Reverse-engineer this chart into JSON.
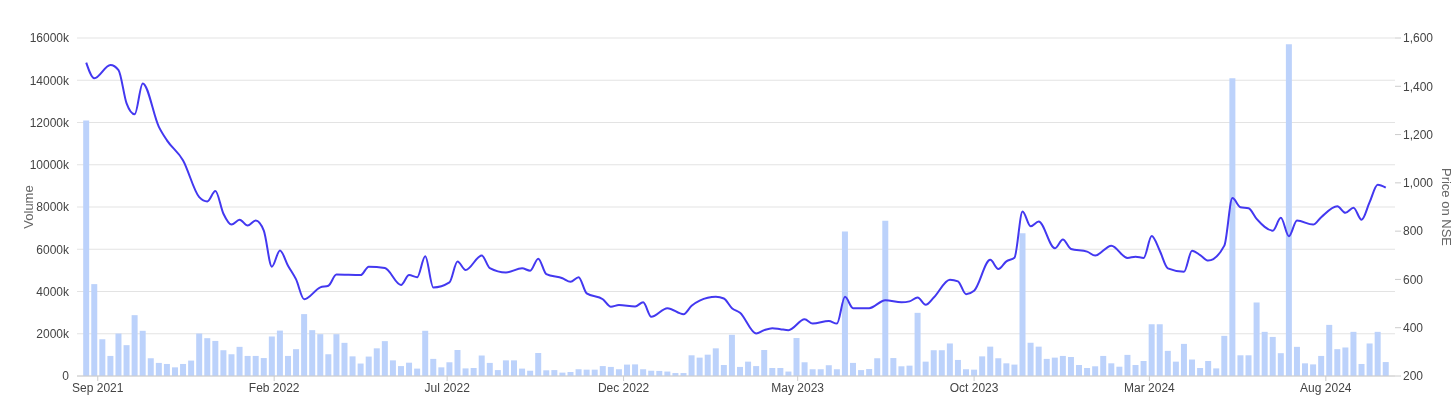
{
  "chart_data": {
    "type": "bar",
    "ylabel": "Volume",
    "y2label": "Price on NSE",
    "grid": "y",
    "xlim": [
      "2021-08-14",
      "2024-09-30"
    ],
    "xticks": [
      {
        "value": "2021-09-01",
        "label": "Sep 2021"
      },
      {
        "value": "2022-02-01",
        "label": "Feb 2022"
      },
      {
        "value": "2022-07-01",
        "label": "Jul 2022"
      },
      {
        "value": "2022-12-01",
        "label": "Dec 2022"
      },
      {
        "value": "2023-05-01",
        "label": "May 2023"
      },
      {
        "value": "2023-10-01",
        "label": "Oct 2023"
      },
      {
        "value": "2024-03-01",
        "label": "Mar 2024"
      },
      {
        "value": "2024-08-01",
        "label": "Aug 2024"
      }
    ],
    "ylim": [
      0,
      16000
    ],
    "yticks": [
      0,
      {
        "value": 2000,
        "label": "2000k"
      },
      {
        "value": 4000,
        "label": "4000k"
      },
      {
        "value": 6000,
        "label": "6000k"
      },
      {
        "value": 8000,
        "label": "8000k"
      },
      {
        "value": 10000,
        "label": "10000k"
      },
      {
        "value": 12000,
        "label": "12000k"
      },
      {
        "value": 14000,
        "label": "14000k"
      },
      {
        "value": 16000,
        "label": "16000k"
      }
    ],
    "y2lim": [
      200,
      1600
    ],
    "y2ticks": [
      200,
      400,
      600,
      800,
      {
        "value": 1000,
        "label": "1,000"
      },
      {
        "value": 1200,
        "label": "1,200"
      },
      {
        "value": 1400,
        "label": "1,400"
      },
      {
        "value": 1600,
        "label": "1,600"
      }
    ],
    "x": [
      "2021-08-22",
      "2021-08-29",
      "2021-09-05",
      "2021-09-12",
      "2021-09-19",
      "2021-09-26",
      "2021-10-03",
      "2021-10-10",
      "2021-10-17",
      "2021-10-24",
      "2021-10-31",
      "2021-11-07",
      "2021-11-14",
      "2021-11-21",
      "2021-11-28",
      "2021-12-05",
      "2021-12-12",
      "2021-12-19",
      "2021-12-26",
      "2022-01-02",
      "2022-01-09",
      "2022-01-16",
      "2022-01-23",
      "2022-01-30",
      "2022-02-06",
      "2022-02-13",
      "2022-02-20",
      "2022-02-27",
      "2022-03-06",
      "2022-03-13",
      "2022-03-20",
      "2022-03-27",
      "2022-04-03",
      "2022-04-10",
      "2022-04-17",
      "2022-04-24",
      "2022-05-01",
      "2022-05-08",
      "2022-05-15",
      "2022-05-22",
      "2022-05-29",
      "2022-06-05",
      "2022-06-12",
      "2022-06-19",
      "2022-06-26",
      "2022-07-03",
      "2022-07-10",
      "2022-07-17",
      "2022-07-24",
      "2022-07-31",
      "2022-08-07",
      "2022-08-14",
      "2022-08-21",
      "2022-08-28",
      "2022-09-04",
      "2022-09-11",
      "2022-09-18",
      "2022-09-25",
      "2022-10-02",
      "2022-10-09",
      "2022-10-16",
      "2022-10-23",
      "2022-10-30",
      "2022-11-06",
      "2022-11-13",
      "2022-11-20",
      "2022-11-27",
      "2022-12-04",
      "2022-12-11",
      "2022-12-18",
      "2022-12-25",
      "2023-01-01",
      "2023-01-08",
      "2023-01-15",
      "2023-01-22",
      "2023-01-29",
      "2023-02-05",
      "2023-02-12",
      "2023-02-19",
      "2023-02-26",
      "2023-03-05",
      "2023-03-12",
      "2023-03-19",
      "2023-03-26",
      "2023-04-02",
      "2023-04-09",
      "2023-04-16",
      "2023-04-23",
      "2023-04-30",
      "2023-05-07",
      "2023-05-14",
      "2023-05-21",
      "2023-05-28",
      "2023-06-04",
      "2023-06-11",
      "2023-06-18",
      "2023-06-25",
      "2023-07-02",
      "2023-07-09",
      "2023-07-16",
      "2023-07-23",
      "2023-07-30",
      "2023-08-06",
      "2023-08-13",
      "2023-08-20",
      "2023-08-27",
      "2023-09-03",
      "2023-09-10",
      "2023-09-17",
      "2023-09-24",
      "2023-10-01",
      "2023-10-08",
      "2023-10-15",
      "2023-10-22",
      "2023-10-29",
      "2023-11-05",
      "2023-11-12",
      "2023-11-19",
      "2023-11-26",
      "2023-12-03",
      "2023-12-10",
      "2023-12-17",
      "2023-12-24",
      "2023-12-31",
      "2024-01-07",
      "2024-01-14",
      "2024-01-21",
      "2024-01-28",
      "2024-02-04",
      "2024-02-11",
      "2024-02-18",
      "2024-02-25",
      "2024-03-03",
      "2024-03-10",
      "2024-03-17",
      "2024-03-24",
      "2024-03-31",
      "2024-04-07",
      "2024-04-14",
      "2024-04-21",
      "2024-04-28",
      "2024-05-05",
      "2024-05-12",
      "2024-05-19",
      "2024-05-26",
      "2024-06-02",
      "2024-06-09",
      "2024-06-16",
      "2024-06-23",
      "2024-06-30",
      "2024-07-07",
      "2024-07-14",
      "2024-07-21",
      "2024-07-28",
      "2024-08-04",
      "2024-08-11",
      "2024-08-18",
      "2024-08-25",
      "2024-09-01",
      "2024-09-08",
      "2024-09-15",
      "2024-09-22"
    ],
    "series": [
      {
        "color": "#bcd2fb",
        "values": [
          12100,
          4350,
          1740,
          950,
          2010,
          1460,
          2880,
          2140,
          840,
          620,
          570,
          410,
          570,
          730,
          2010,
          1790,
          1660,
          1220,
          1030,
          1380,
          950,
          950,
          850,
          1870,
          2150,
          950,
          1270,
          2930,
          2170,
          1980,
          1030,
          1980,
          1570,
          930,
          590,
          920,
          1310,
          1650,
          740,
          470,
          630,
          350,
          2140,
          810,
          410,
          650,
          1230,
          360,
          380,
          970,
          620,
          280,
          740,
          740,
          350,
          250,
          1090,
          270,
          280,
          160,
          190,
          320,
          300,
          300,
          470,
          430,
          320,
          540,
          550,
          320,
          250,
          240,
          210,
          140,
          140,
          980,
          870,
          1010,
          1310,
          520,
          1950,
          430,
          680,
          470,
          1230,
          380,
          380,
          210,
          1800,
          650,
          320,
          320,
          510,
          320,
          6840,
          620,
          280,
          330,
          840,
          7350,
          850,
          460,
          490,
          2990,
          680,
          1220,
          1220,
          1540,
          760,
          320,
          300,
          930,
          1390,
          840,
          600,
          540,
          6760,
          1570,
          1390,
          810,
          870,
          950,
          900,
          520,
          380,
          460,
          950,
          600,
          440,
          1000,
          520,
          710,
          2450,
          2450,
          1190,
          680,
          1520,
          780,
          380,
          710,
          360,
          1900,
          14100,
          980,
          980,
          3480,
          2090,
          1850,
          1080,
          15700,
          1380,
          600,
          550,
          950,
          2420,
          1270,
          1350,
          2090,
          570,
          1540,
          2090,
          660
        ]
      },
      {
        "type": "line",
        "axis": "y2",
        "color": "#4338f0",
        "line_style": "solid",
        "x": [
          "2021-08-22",
          "2021-08-29",
          "2021-09-12",
          "2021-09-19",
          "2021-09-26",
          "2021-10-03",
          "2021-10-10",
          "2021-10-24",
          "2021-10-31",
          "2021-11-14",
          "2021-11-28",
          "2021-12-05",
          "2021-12-12",
          "2021-12-19",
          "2021-12-26",
          "2022-01-02",
          "2022-01-09",
          "2022-01-16",
          "2022-01-23",
          "2022-01-30",
          "2022-02-06",
          "2022-02-13",
          "2022-02-20",
          "2022-02-27",
          "2022-03-13",
          "2022-03-20",
          "2022-03-27",
          "2022-04-17",
          "2022-04-24",
          "2022-05-08",
          "2022-05-22",
          "2022-05-29",
          "2022-06-05",
          "2022-06-12",
          "2022-06-19",
          "2022-07-03",
          "2022-07-10",
          "2022-07-17",
          "2022-07-31",
          "2022-08-07",
          "2022-08-21",
          "2022-09-04",
          "2022-09-11",
          "2022-09-18",
          "2022-09-25",
          "2022-10-09",
          "2022-10-16",
          "2022-10-23",
          "2022-10-30",
          "2022-11-13",
          "2022-11-20",
          "2022-11-27",
          "2022-12-11",
          "2022-12-18",
          "2022-12-25",
          "2023-01-08",
          "2023-01-22",
          "2023-01-29",
          "2023-02-05",
          "2023-02-19",
          "2023-02-26",
          "2023-03-05",
          "2023-03-12",
          "2023-03-26",
          "2023-04-02",
          "2023-04-09",
          "2023-04-16",
          "2023-04-23",
          "2023-05-07",
          "2023-05-14",
          "2023-05-28",
          "2023-06-04",
          "2023-06-11",
          "2023-06-18",
          "2023-07-02",
          "2023-07-16",
          "2023-07-30",
          "2023-08-06",
          "2023-08-13",
          "2023-08-20",
          "2023-08-27",
          "2023-09-10",
          "2023-09-17",
          "2023-09-24",
          "2023-10-01",
          "2023-10-15",
          "2023-10-22",
          "2023-10-29",
          "2023-11-05",
          "2023-11-12",
          "2023-11-19",
          "2023-11-26",
          "2023-12-10",
          "2023-12-17",
          "2023-12-24",
          "2024-01-07",
          "2024-01-14",
          "2024-01-28",
          "2024-02-11",
          "2024-02-18",
          "2024-02-25",
          "2024-03-03",
          "2024-03-10",
          "2024-03-17",
          "2024-03-31",
          "2024-04-07",
          "2024-04-14",
          "2024-04-21",
          "2024-05-05",
          "2024-05-12",
          "2024-05-19",
          "2024-05-26",
          "2024-06-02",
          "2024-06-16",
          "2024-06-23",
          "2024-06-30",
          "2024-07-07",
          "2024-07-21",
          "2024-07-28",
          "2024-08-11",
          "2024-08-18",
          "2024-08-25",
          "2024-09-01",
          "2024-09-08",
          "2024-09-15",
          "2024-09-22"
        ],
        "values": [
          1498,
          1433,
          1488,
          1467,
          1329,
          1284,
          1412,
          1232,
          1176,
          1093,
          941,
          923,
          966,
          872,
          827,
          847,
          823,
          844,
          802,
          653,
          720,
          657,
          600,
          518,
          567,
          574,
          620,
          618,
          653,
          647,
          577,
          618,
          609,
          696,
          567,
          588,
          674,
          639,
          699,
          647,
          629,
          646,
          636,
          686,
          622,
          605,
          590,
          609,
          542,
          518,
          487,
          494,
          488,
          505,
          445,
          481,
          456,
          491,
          512,
          528,
          521,
          481,
          462,
          376,
          390,
          398,
          394,
          390,
          435,
          417,
          428,
          417,
          528,
          481,
          481,
          514,
          505,
          509,
          525,
          495,
          525,
          599,
          592,
          539,
          553,
          681,
          643,
          675,
          690,
          881,
          820,
          840,
          729,
          765,
          726,
          715,
          699,
          740,
          689,
          694,
          689,
          780,
          719,
          646,
          632,
          719,
          701,
          678,
          740,
          937,
          899,
          895,
          851,
          802,
          855,
          779,
          844,
          827,
          858,
          903,
          876,
          897,
          847,
          920,
          992,
          980
        ]
      }
    ]
  }
}
